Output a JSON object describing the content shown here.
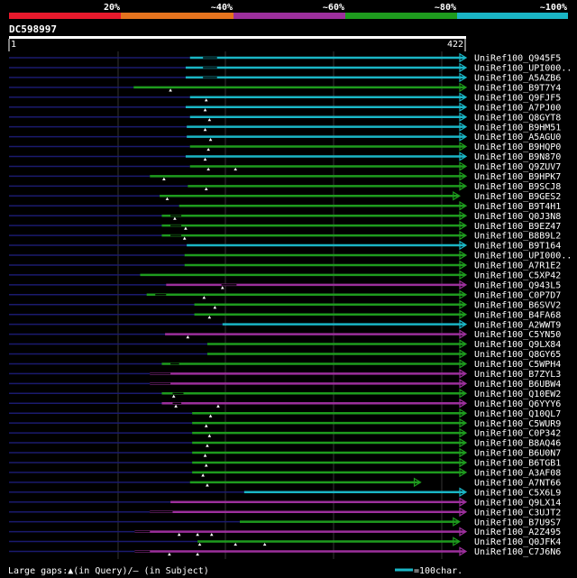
{
  "chart_data": {
    "type": "alignment-overview",
    "title": "DC598997",
    "query_start": "1",
    "query_end": "422",
    "query_length": 422,
    "identity_scale": [
      {
        "label": "20%",
        "color": "#e8192c"
      },
      {
        "label": "~40%",
        "color": "#e5731e"
      },
      {
        "label": "~60%",
        "color": "#9c2f9c"
      },
      {
        "label": "~80%",
        "color": "#1e9b1e"
      },
      {
        "label": "~100%",
        "color": "#1ab5c5"
      }
    ],
    "category_colors": {
      "cyan": "#1ab5c5",
      "green": "#1e9b1e",
      "purple": "#9c2f9c"
    },
    "hits": [
      {
        "name": "UniRef100_Q945F5",
        "q_start": 168,
        "q_end": 422,
        "color": "cyan",
        "arrow": true,
        "gaps": [
          [
            180,
            193
          ]
        ],
        "marks": []
      },
      {
        "name": "UniRef100_UPI000..",
        "q_start": 164,
        "q_end": 422,
        "color": "cyan",
        "arrow": true,
        "gaps": [
          [
            180,
            193
          ]
        ],
        "marks": []
      },
      {
        "name": "UniRef100_A5AZB6",
        "q_start": 164,
        "q_end": 422,
        "color": "cyan",
        "arrow": true,
        "gaps": [
          [
            180,
            193
          ]
        ],
        "marks": []
      },
      {
        "name": "UniRef100_B9T7Y4",
        "q_start": 116,
        "q_end": 422,
        "color": "green",
        "arrow": true,
        "gaps": [],
        "marks": [
          150
        ]
      },
      {
        "name": "UniRef100_Q9FJF5",
        "q_start": 168,
        "q_end": 422,
        "color": "cyan",
        "arrow": true,
        "gaps": [],
        "marks": [
          183
        ]
      },
      {
        "name": "UniRef100_A7PJ00",
        "q_start": 164,
        "q_end": 422,
        "color": "cyan",
        "arrow": true,
        "gaps": [],
        "marks": [
          182
        ]
      },
      {
        "name": "UniRef100_Q8GYT8",
        "q_start": 168,
        "q_end": 422,
        "color": "cyan",
        "arrow": true,
        "gaps": [],
        "marks": [
          186
        ]
      },
      {
        "name": "UniRef100_B9HM51",
        "q_start": 165,
        "q_end": 422,
        "color": "cyan",
        "arrow": true,
        "gaps": [],
        "marks": [
          182
        ]
      },
      {
        "name": "UniRef100_A5AGU0",
        "q_start": 165,
        "q_end": 422,
        "color": "cyan",
        "arrow": true,
        "gaps": [],
        "marks": [
          187
        ]
      },
      {
        "name": "UniRef100_B9HQP0",
        "q_start": 168,
        "q_end": 422,
        "color": "green",
        "arrow": true,
        "gaps": [],
        "marks": [
          185
        ]
      },
      {
        "name": "UniRef100_B9N870",
        "q_start": 164,
        "q_end": 422,
        "color": "cyan",
        "arrow": true,
        "gaps": [],
        "marks": [
          182
        ]
      },
      {
        "name": "UniRef100_Q9ZUV7",
        "q_start": 168,
        "q_end": 422,
        "color": "green",
        "arrow": true,
        "gaps": [],
        "marks": [
          185,
          210
        ]
      },
      {
        "name": "UniRef100_B9HPK7",
        "q_start": 131,
        "q_end": 422,
        "color": "green",
        "arrow": true,
        "gaps": [],
        "marks": [
          144
        ]
      },
      {
        "name": "UniRef100_B9SCJ8",
        "q_start": 166,
        "q_end": 422,
        "color": "green",
        "arrow": true,
        "gaps": [],
        "marks": [
          183
        ]
      },
      {
        "name": "UniRef100_B9GES2",
        "q_start": 140,
        "q_end": 416,
        "color": "green",
        "arrow": true,
        "gaps": [],
        "marks": [
          147
        ]
      },
      {
        "name": "UniRef100_B9T4H1",
        "q_start": 158,
        "q_end": 422,
        "color": "green",
        "arrow": true,
        "gaps": [],
        "marks": []
      },
      {
        "name": "UniRef100_Q0J3N8",
        "q_start": 142,
        "q_end": 422,
        "color": "green",
        "arrow": true,
        "gaps": [
          [
            150,
            160
          ]
        ],
        "marks": [
          154
        ]
      },
      {
        "name": "UniRef100_B9EZ47",
        "q_start": 142,
        "q_end": 422,
        "color": "green",
        "arrow": true,
        "gaps": [
          [
            150,
            160
          ]
        ],
        "marks": [
          164
        ]
      },
      {
        "name": "UniRef100_B8B9L2",
        "q_start": 142,
        "q_end": 422,
        "color": "green",
        "arrow": true,
        "gaps": [
          [
            150,
            160
          ]
        ],
        "marks": [
          163
        ]
      },
      {
        "name": "UniRef100_B9T164",
        "q_start": 165,
        "q_end": 422,
        "color": "cyan",
        "arrow": true,
        "gaps": [],
        "marks": []
      },
      {
        "name": "UniRef100_UPI000..",
        "q_start": 163,
        "q_end": 422,
        "color": "green",
        "arrow": true,
        "gaps": [],
        "marks": []
      },
      {
        "name": "UniRef100_A7R1E2",
        "q_start": 163,
        "q_end": 422,
        "color": "green",
        "arrow": true,
        "gaps": [],
        "marks": []
      },
      {
        "name": "UniRef100_C5XP42",
        "q_start": 122,
        "q_end": 422,
        "color": "green",
        "arrow": true,
        "gaps": [],
        "marks": []
      },
      {
        "name": "UniRef100_Q943L5",
        "q_start": 146,
        "q_end": 422,
        "color": "purple",
        "arrow": true,
        "gaps": [
          [
            197,
            211
          ]
        ],
        "marks": [
          198
        ]
      },
      {
        "name": "UniRef100_C0P7D7",
        "q_start": 128,
        "q_end": 422,
        "color": "green",
        "arrow": true,
        "gaps": [
          [
            136,
            146
          ]
        ],
        "marks": [
          181
        ]
      },
      {
        "name": "UniRef100_B6SVV2",
        "q_start": 172,
        "q_end": 422,
        "color": "green",
        "arrow": true,
        "gaps": [],
        "marks": [
          191
        ]
      },
      {
        "name": "UniRef100_B4FA68",
        "q_start": 172,
        "q_end": 422,
        "color": "green",
        "arrow": true,
        "gaps": [],
        "marks": [
          186
        ]
      },
      {
        "name": "UniRef100_A2WWT9",
        "q_start": 198,
        "q_end": 422,
        "color": "cyan",
        "arrow": true,
        "gaps": [],
        "marks": []
      },
      {
        "name": "UniRef100_C5YN50",
        "q_start": 145,
        "q_end": 422,
        "color": "purple",
        "arrow": true,
        "gaps": [],
        "marks": [
          166
        ]
      },
      {
        "name": "UniRef100_Q9LX84",
        "q_start": 184,
        "q_end": 422,
        "color": "green",
        "arrow": true,
        "gaps": [],
        "marks": []
      },
      {
        "name": "UniRef100_Q8GY65",
        "q_start": 184,
        "q_end": 422,
        "color": "green",
        "arrow": true,
        "gaps": [],
        "marks": []
      },
      {
        "name": "UniRef100_C5WPH4",
        "q_start": 142,
        "q_end": 422,
        "color": "green",
        "arrow": true,
        "gaps": [
          [
            150,
            158
          ]
        ],
        "marks": []
      },
      {
        "name": "UniRef100_B7ZYL3",
        "q_start": 131,
        "q_end": 422,
        "color": "purple",
        "arrow": true,
        "gaps": [
          [
            131,
            150
          ]
        ],
        "marks": []
      },
      {
        "name": "UniRef100_B6UBW4",
        "q_start": 131,
        "q_end": 422,
        "color": "purple",
        "arrow": true,
        "gaps": [
          [
            131,
            150
          ]
        ],
        "marks": []
      },
      {
        "name": "UniRef100_Q10EW2",
        "q_start": 142,
        "q_end": 422,
        "color": "green",
        "arrow": true,
        "gaps": [
          [
            152,
            162
          ]
        ],
        "marks": [
          153
        ]
      },
      {
        "name": "UniRef100_Q6YYY6",
        "q_start": 142,
        "q_end": 422,
        "color": "purple",
        "arrow": true,
        "gaps": [
          [
            152,
            160
          ]
        ],
        "marks": [
          155,
          194
        ]
      },
      {
        "name": "UniRef100_Q10QL7",
        "q_start": 170,
        "q_end": 422,
        "color": "green",
        "arrow": true,
        "gaps": [],
        "marks": [
          187
        ]
      },
      {
        "name": "UniRef100_C5WUR9",
        "q_start": 170,
        "q_end": 422,
        "color": "green",
        "arrow": true,
        "gaps": [],
        "marks": [
          183
        ]
      },
      {
        "name": "UniRef100_C0P342",
        "q_start": 170,
        "q_end": 422,
        "color": "green",
        "arrow": true,
        "gaps": [],
        "marks": [
          186
        ]
      },
      {
        "name": "UniRef100_B8AQ46",
        "q_start": 170,
        "q_end": 422,
        "color": "green",
        "arrow": true,
        "gaps": [],
        "marks": [
          184
        ]
      },
      {
        "name": "UniRef100_B6U0N7",
        "q_start": 170,
        "q_end": 422,
        "color": "green",
        "arrow": true,
        "gaps": [],
        "marks": [
          182
        ]
      },
      {
        "name": "UniRef100_B6TGB1",
        "q_start": 170,
        "q_end": 422,
        "color": "green",
        "arrow": true,
        "gaps": [],
        "marks": [
          183
        ]
      },
      {
        "name": "UniRef100_A3AF08",
        "q_start": 170,
        "q_end": 422,
        "color": "green",
        "arrow": true,
        "gaps": [],
        "marks": [
          180
        ]
      },
      {
        "name": "UniRef100_A7NT66",
        "q_start": 168,
        "q_end": 380,
        "color": "green",
        "arrow": true,
        "gaps": [],
        "marks": [
          184
        ]
      },
      {
        "name": "UniRef100_C5X6L9",
        "q_start": 218,
        "q_end": 422,
        "color": "cyan",
        "arrow": true,
        "gaps": [],
        "marks": []
      },
      {
        "name": "UniRef100_Q9LX14",
        "q_start": 150,
        "q_end": 422,
        "color": "purple",
        "arrow": true,
        "gaps": [],
        "marks": []
      },
      {
        "name": "UniRef100_C3UJT2",
        "q_start": 131,
        "q_end": 422,
        "color": "purple",
        "arrow": true,
        "gaps": [
          [
            131,
            152
          ]
        ],
        "marks": []
      },
      {
        "name": "UniRef100_B7U9S7",
        "q_start": 214,
        "q_end": 416,
        "color": "green",
        "arrow": true,
        "gaps": [],
        "marks": []
      },
      {
        "name": "UniRef100_A2Z495",
        "q_start": 117,
        "q_end": 422,
        "color": "purple",
        "arrow": true,
        "gaps": [
          [
            117,
            131
          ]
        ],
        "marks": [
          158,
          175,
          188
        ]
      },
      {
        "name": "UniRef100_Q0JFK4",
        "q_start": 175,
        "q_end": 416,
        "color": "green",
        "arrow": true,
        "gaps": [],
        "marks": [
          177,
          210,
          237
        ]
      },
      {
        "name": "UniRef100_C7J6N6",
        "q_start": 117,
        "q_end": 422,
        "color": "purple",
        "arrow": true,
        "gaps": [
          [
            117,
            131
          ]
        ],
        "marks": [
          149,
          175
        ]
      }
    ],
    "legend": {
      "gaps_label": "Large gaps:",
      "query_symbol": "▲",
      "query_text": "(in Query)/",
      "subject_symbol": "—",
      "subject_text": " (in Subject)",
      "scale_label": "=100char."
    }
  }
}
